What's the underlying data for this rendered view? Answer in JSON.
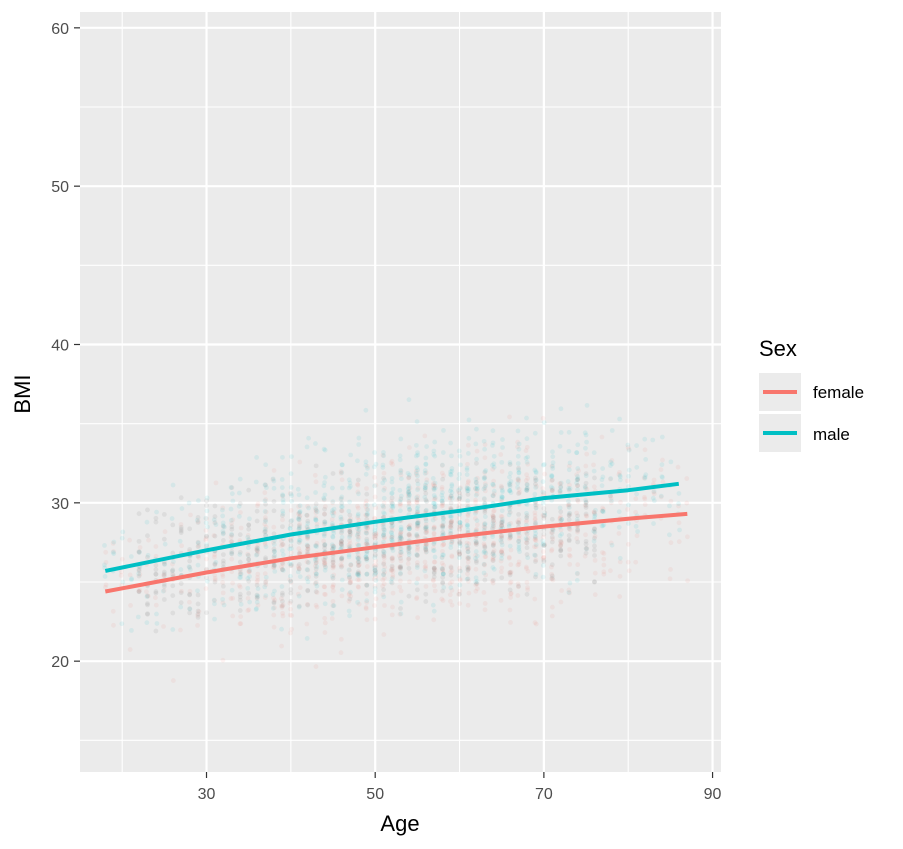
{
  "chart_data": {
    "type": "scatter",
    "xlabel": "Age",
    "ylabel": "BMI",
    "xlim": [
      15,
      91
    ],
    "ylim": [
      13,
      61
    ],
    "x_ticks": [
      30,
      50,
      70,
      90
    ],
    "y_ticks": [
      20,
      30,
      40,
      50,
      60
    ],
    "grid": true,
    "legend": {
      "title": "Sex",
      "placement": "right"
    },
    "series": [
      {
        "name": "female",
        "color": "#F8766D",
        "trend": {
          "x": [
            18,
            30,
            40,
            50,
            60,
            70,
            80,
            87
          ],
          "y": [
            24.4,
            25.6,
            26.5,
            27.2,
            27.9,
            28.5,
            29.0,
            29.3
          ]
        },
        "points_cloud": {
          "x_range": [
            18,
            87
          ],
          "center": 26.5,
          "spread": 4.5
        }
      },
      {
        "name": "male",
        "color": "#00BFC4",
        "trend": {
          "x": [
            18,
            30,
            40,
            50,
            60,
            70,
            80,
            86
          ],
          "y": [
            25.7,
            27.0,
            28.0,
            28.8,
            29.5,
            30.3,
            30.8,
            31.2
          ]
        },
        "points_cloud": {
          "x_range": [
            18,
            86
          ],
          "center": 28.5,
          "spread": 4.5
        }
      }
    ]
  }
}
